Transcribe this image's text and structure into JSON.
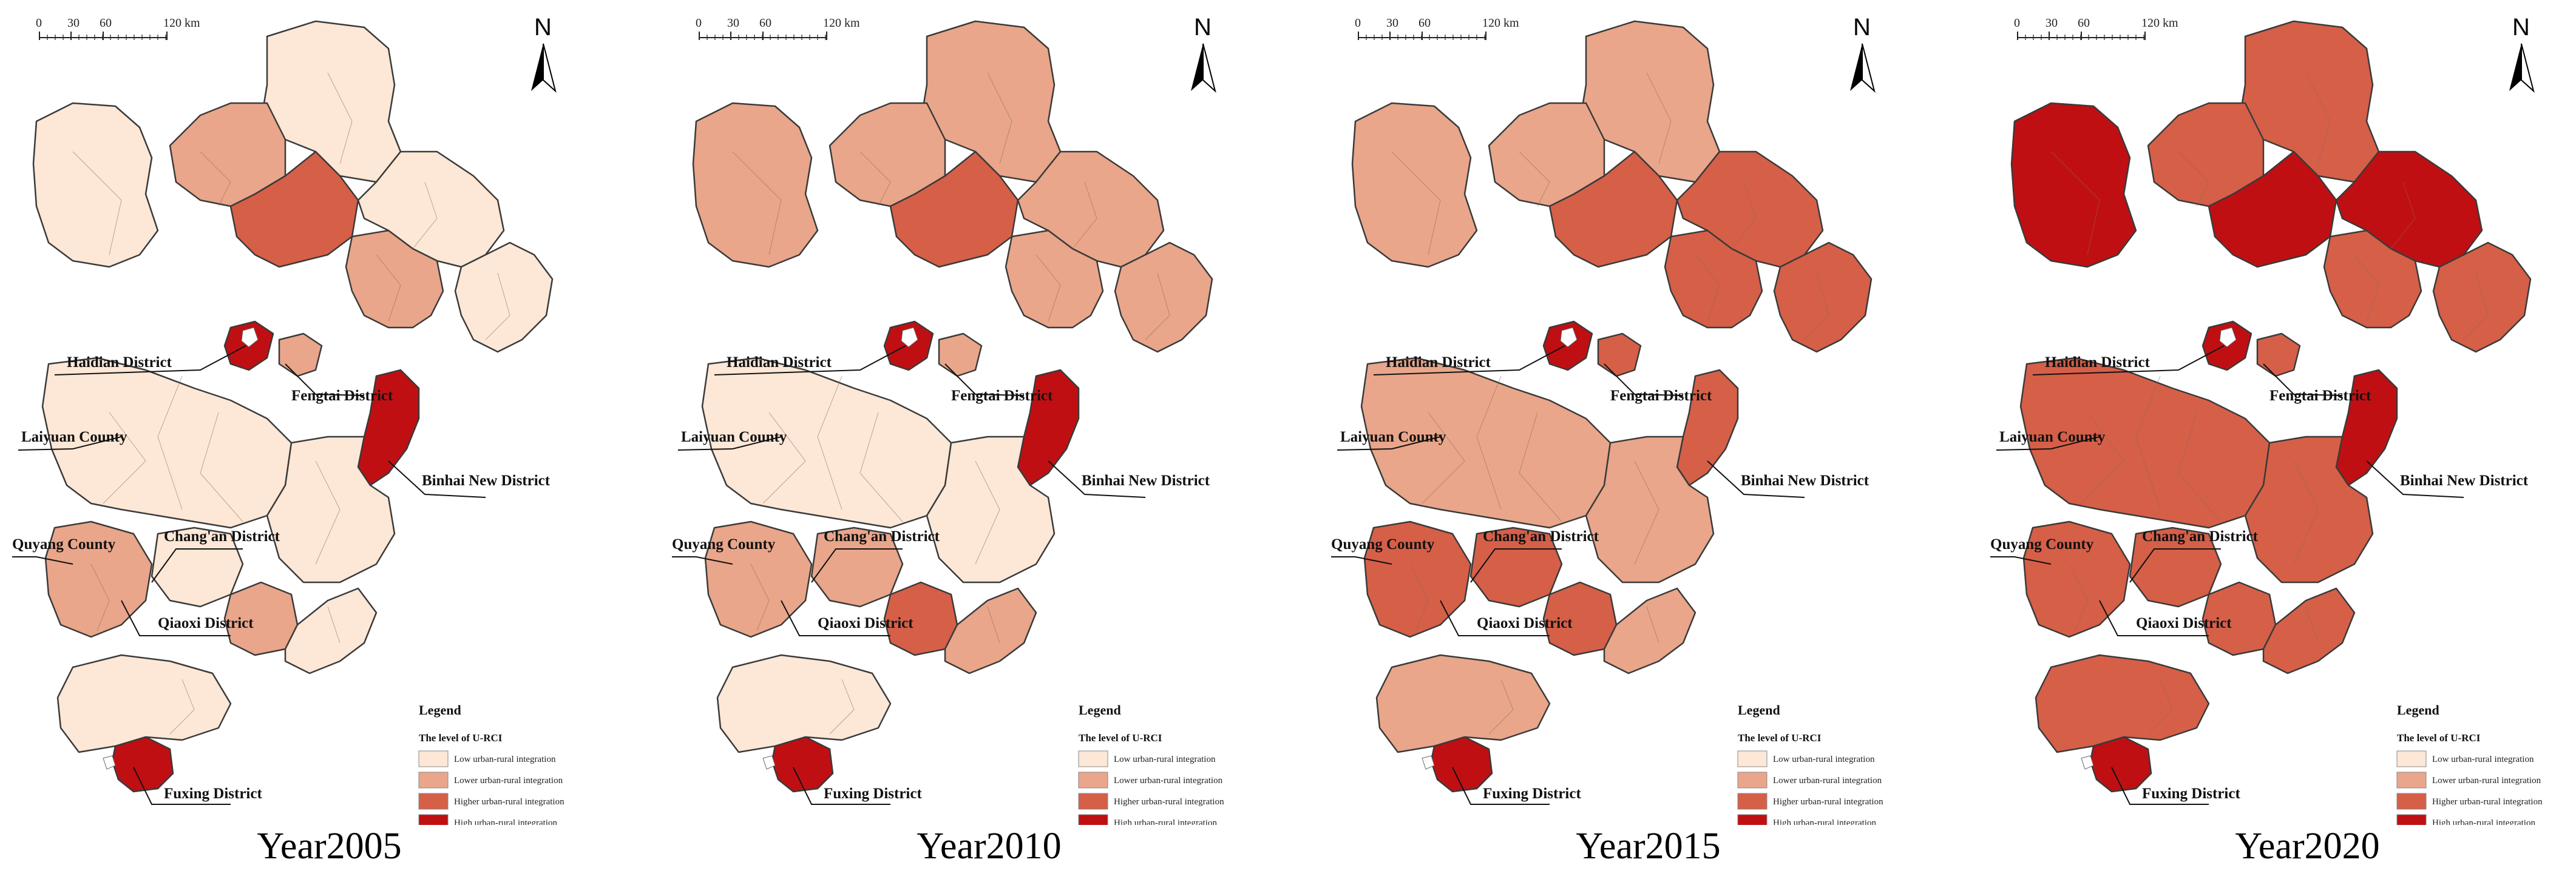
{
  "legend": {
    "title": "Legend",
    "subtitle": "The level of U-RCI",
    "classes": [
      {
        "label": "Low urban-rural integration",
        "color": "#fde7d6"
      },
      {
        "label": "Lower urban-rural integration",
        "color": "#e9a68a"
      },
      {
        "label": "Higher urban-rural integration",
        "color": "#d65f48"
      },
      {
        "label": "High urban-rural integration",
        "color": "#c00f12"
      }
    ]
  },
  "scale_bar": {
    "ticks": [
      "0",
      "30",
      "60",
      "120 km"
    ]
  },
  "north_arrow": {
    "letter": "N"
  },
  "place_labels": [
    "Haidian District",
    "Fengtai District",
    "Laiyuan County",
    "Binhai New District",
    "Quyang County",
    "Chang'an District",
    "Qiaoxi District",
    "Fuxing District"
  ],
  "maps": [
    {
      "year_label": "Year2005",
      "levels": {
        "n": 1,
        "nw": 1,
        "w": 2,
        "cn": 3,
        "ne": 1,
        "ce": 1,
        "cs": 2,
        "haidian": 4,
        "fengtai": 2,
        "binhai": 4,
        "c": 1,
        "s": 1,
        "sw": 2,
        "chang": 1,
        "qiaoxi": 2,
        "fuxing": 4,
        "sse": 1,
        "ss": 1
      }
    },
    {
      "year_label": "Year2010",
      "levels": {
        "n": 2,
        "nw": 2,
        "w": 2,
        "cn": 3,
        "ne": 2,
        "ce": 2,
        "cs": 2,
        "haidian": 4,
        "fengtai": 2,
        "binhai": 4,
        "c": 1,
        "s": 1,
        "sw": 2,
        "chang": 2,
        "qiaoxi": 3,
        "fuxing": 4,
        "sse": 2,
        "ss": 1
      }
    },
    {
      "year_label": "Year2015",
      "levels": {
        "n": 2,
        "nw": 2,
        "w": 2,
        "cn": 3,
        "ne": 3,
        "ce": 3,
        "cs": 3,
        "haidian": 4,
        "fengtai": 3,
        "binhai": 3,
        "c": 2,
        "s": 2,
        "sw": 3,
        "chang": 3,
        "qiaoxi": 3,
        "fuxing": 4,
        "sse": 2,
        "ss": 2
      }
    },
    {
      "year_label": "Year2020",
      "levels": {
        "n": 3,
        "nw": 4,
        "w": 3,
        "cn": 4,
        "ne": 4,
        "ce": 3,
        "cs": 3,
        "haidian": 4,
        "fengtai": 3,
        "binhai": 4,
        "c": 3,
        "s": 3,
        "sw": 3,
        "chang": 3,
        "qiaoxi": 3,
        "fuxing": 4,
        "sse": 3,
        "ss": 3
      }
    }
  ]
}
